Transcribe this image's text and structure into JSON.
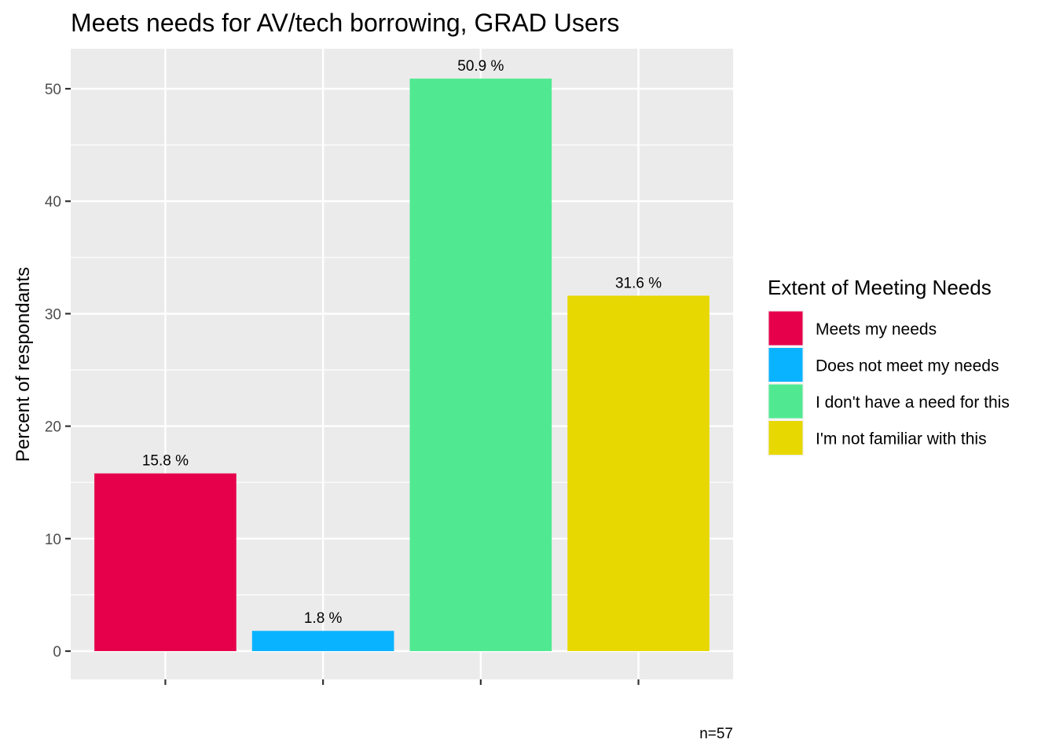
{
  "chart_data": {
    "type": "bar",
    "title": "Meets needs for AV/tech borrowing, GRAD Users",
    "xlabel": "",
    "ylabel": "Percent of respondants",
    "ylim": [
      0,
      53
    ],
    "yticks": [
      0,
      10,
      20,
      30,
      40,
      50
    ],
    "grid": true,
    "categories": [
      "Meets my needs",
      "Does not meet my needs",
      "I don't have a need for this",
      "I'm not familiar with this"
    ],
    "values": [
      15.8,
      1.8,
      50.9,
      31.6
    ],
    "data_labels": [
      "15.8 %",
      "1.8 %",
      "50.9 %",
      "31.6 %"
    ],
    "colors": [
      "#E6004C",
      "#0AB3FF",
      "#50E991",
      "#E6D800"
    ],
    "legend": {
      "title": "Extent of Meeting Needs",
      "placement": "right",
      "entries": [
        "Meets my needs",
        "Does not meet my needs",
        "I don't have a need for this",
        "I'm not familiar with this"
      ]
    },
    "caption": "n=57"
  }
}
